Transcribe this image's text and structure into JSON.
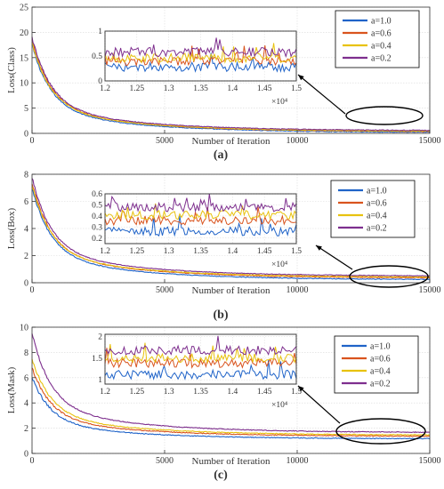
{
  "colors": {
    "a=1.0": "#1f63c8",
    "a=0.6": "#d9541e",
    "a=0.4": "#e8c20f",
    "a=0.2": "#7e2f8e",
    "axis": "#333333",
    "grid": "#d9d9d9"
  },
  "chart_data": [
    {
      "panel": "(a)",
      "type": "line",
      "xlabel": "Number of Iteration",
      "ylabel": "Loss(Class)",
      "xlim": [
        0,
        15000
      ],
      "ylim": [
        0,
        25
      ],
      "xticks": [
        0,
        5000,
        10000,
        15000
      ],
      "yticks": [
        0,
        5,
        10,
        15,
        20,
        25
      ],
      "grid": true,
      "legend_position": "top-right",
      "series": [
        {
          "name": "a=1.0",
          "start": 17.5,
          "tail": 0.18
        },
        {
          "name": "a=0.6",
          "start": 18.5,
          "tail": 0.32
        },
        {
          "name": "a=0.4",
          "start": 18.0,
          "tail": 0.38
        },
        {
          "name": "a=0.2",
          "start": 19.0,
          "tail": 0.52
        }
      ],
      "inset": {
        "xlim": [
          1.2,
          1.5
        ],
        "ylim": [
          0,
          1
        ],
        "xticks": [
          1.2,
          1.25,
          1.3,
          1.35,
          1.4,
          1.45,
          1.5
        ],
        "yticks": [
          0,
          0.5,
          1
        ],
        "exponent_label": "×10⁴",
        "series_levels": {
          "a=1.0": 0.28,
          "a=0.6": 0.4,
          "a=0.4": 0.46,
          "a=0.2": 0.58
        }
      }
    },
    {
      "panel": "(b)",
      "type": "line",
      "xlabel": "Number of Iteration",
      "ylabel": "Loss(Box)",
      "xlim": [
        0,
        15000
      ],
      "ylim": [
        0,
        8
      ],
      "xticks": [
        0,
        5000,
        10000,
        15000
      ],
      "yticks": [
        0,
        2,
        4,
        6,
        8
      ],
      "grid": true,
      "legend_position": "top-right",
      "series": [
        {
          "name": "a=1.0",
          "start": 7.0,
          "tail": 0.22
        },
        {
          "name": "a=0.6",
          "start": 7.4,
          "tail": 0.34
        },
        {
          "name": "a=0.4",
          "start": 7.2,
          "tail": 0.4
        },
        {
          "name": "a=0.2",
          "start": 7.8,
          "tail": 0.48
        }
      ],
      "inset": {
        "xlim": [
          1.2,
          1.5
        ],
        "ylim": [
          0.15,
          0.6
        ],
        "xticks": [
          1.2,
          1.25,
          1.3,
          1.35,
          1.4,
          1.45,
          1.5
        ],
        "yticks": [
          0.2,
          0.3,
          0.4,
          0.5,
          0.6
        ],
        "exponent_label": "×10⁴",
        "series_levels": {
          "a=1.0": 0.26,
          "a=0.6": 0.36,
          "a=0.4": 0.41,
          "a=0.2": 0.48
        }
      }
    },
    {
      "panel": "(c)",
      "type": "line",
      "xlabel": "Number of Iteration",
      "ylabel": "Loss(Mask)",
      "xlim": [
        0,
        15000
      ],
      "ylim": [
        0,
        10
      ],
      "xticks": [
        0,
        5000,
        10000,
        15000
      ],
      "yticks": [
        0,
        2,
        4,
        6,
        8,
        10
      ],
      "grid": true,
      "legend_position": "top-right",
      "series": [
        {
          "name": "a=1.0",
          "start": 6.0,
          "tail": 1.15
        },
        {
          "name": "a=0.6",
          "start": 6.8,
          "tail": 1.35
        },
        {
          "name": "a=0.4",
          "start": 7.5,
          "tail": 1.45
        },
        {
          "name": "a=0.2",
          "start": 9.5,
          "tail": 1.65
        }
      ],
      "inset": {
        "xlim": [
          1.2,
          1.5
        ],
        "ylim": [
          0.9,
          2.05
        ],
        "xticks": [
          1.2,
          1.25,
          1.3,
          1.35,
          1.4,
          1.45,
          1.5
        ],
        "yticks": [
          1,
          1.5,
          2
        ],
        "exponent_label": "×10⁴",
        "series_levels": {
          "a=1.0": 1.12,
          "a=0.6": 1.38,
          "a=0.4": 1.5,
          "a=0.2": 1.68
        }
      }
    }
  ]
}
